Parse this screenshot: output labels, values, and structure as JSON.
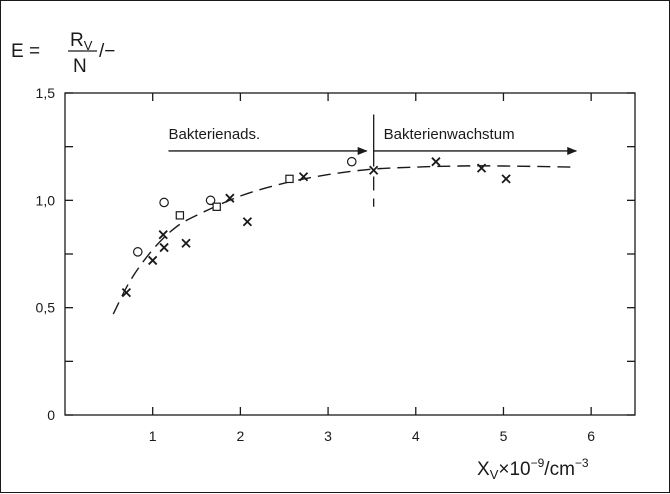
{
  "chart_data": {
    "type": "scatter",
    "title": "",
    "ylabel": {
      "prefix": "E = ",
      "numerator_main": "R",
      "numerator_sub": "V",
      "denominator": "N",
      "suffix": "/−"
    },
    "xlabel": {
      "main": "X",
      "sub": "V",
      "times": "×",
      "base": "10",
      "exp1": "−9",
      "unit": "/cm",
      "exp2": "−3"
    },
    "xlim": [
      0,
      6.5
    ],
    "ylim": [
      0,
      1.5
    ],
    "x_ticks": [
      1,
      2,
      3,
      4,
      5,
      6
    ],
    "y_ticks": [
      0,
      0.25,
      0.5,
      0.75,
      1.0,
      1.25,
      1.5
    ],
    "x_tick_labels": [
      "1",
      "2",
      "3",
      "4",
      "5",
      "6"
    ],
    "y_tick_labels": [
      {
        "value": 0,
        "label": "0"
      },
      {
        "value": 0.5,
        "label": "0,5"
      },
      {
        "value": 1.0,
        "label": "1,0"
      },
      {
        "value": 1.5,
        "label": "1,5"
      }
    ],
    "grid": false,
    "series": [
      {
        "marker": "circle",
        "points": [
          [
            0.83,
            0.76
          ],
          [
            1.13,
            0.99
          ],
          [
            1.66,
            1.0
          ],
          [
            3.27,
            1.18
          ]
        ]
      },
      {
        "marker": "square",
        "points": [
          [
            1.31,
            0.93
          ],
          [
            1.73,
            0.97
          ],
          [
            2.56,
            1.1
          ]
        ]
      },
      {
        "marker": "cross",
        "points": [
          [
            0.7,
            0.57
          ],
          [
            1.0,
            0.72
          ],
          [
            1.12,
            0.84
          ],
          [
            1.13,
            0.78
          ],
          [
            1.38,
            0.8
          ],
          [
            1.88,
            1.01
          ],
          [
            2.08,
            0.9
          ],
          [
            2.72,
            1.11
          ],
          [
            3.52,
            1.14
          ],
          [
            4.23,
            1.18
          ],
          [
            4.75,
            1.15
          ],
          [
            5.03,
            1.1
          ]
        ]
      }
    ],
    "fit_curve": {
      "style": "dashed",
      "points": [
        [
          0.55,
          0.47
        ],
        [
          0.75,
          0.63
        ],
        [
          1.0,
          0.77
        ],
        [
          1.25,
          0.87
        ],
        [
          1.5,
          0.93
        ],
        [
          2.0,
          1.02
        ],
        [
          2.5,
          1.08
        ],
        [
          3.0,
          1.12
        ],
        [
          3.5,
          1.145
        ],
        [
          4.0,
          1.155
        ],
        [
          4.5,
          1.16
        ],
        [
          5.0,
          1.16
        ],
        [
          5.8,
          1.155
        ]
      ]
    },
    "divider": {
      "x": 3.52,
      "y_from": 0.97,
      "y_to": 1.4
    },
    "annotations": {
      "left_label": "Bakterienads.",
      "right_label": "Bakterienwachstum",
      "left_arrow": {
        "x_from": 1.18,
        "x_to": 3.44,
        "y": 1.23
      },
      "right_arrow": {
        "x_from": 3.52,
        "x_to": 5.83,
        "y": 1.23
      }
    }
  }
}
